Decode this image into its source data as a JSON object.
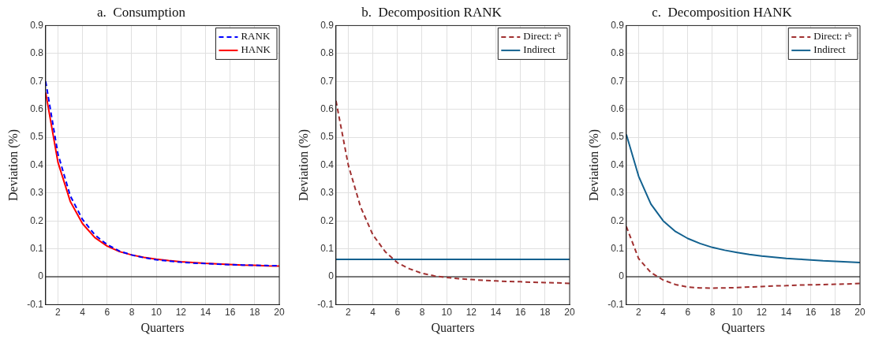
{
  "chart_data": [
    {
      "type": "line",
      "title": "a.  Consumption",
      "xlabel": "Quarters",
      "ylabel": "Deviation (%)",
      "x": [
        1,
        2,
        3,
        4,
        5,
        6,
        7,
        8,
        9,
        10,
        11,
        12,
        13,
        14,
        15,
        16,
        17,
        18,
        19,
        20
      ],
      "xlim": [
        1,
        20
      ],
      "xticks": [
        2,
        4,
        6,
        8,
        10,
        12,
        14,
        16,
        18,
        20
      ],
      "ylim": [
        -0.1,
        0.9
      ],
      "yticks": [
        -0.1,
        0,
        0.1,
        0.2,
        0.3,
        0.4,
        0.5,
        0.6,
        0.7,
        0.8,
        0.9
      ],
      "grid": true,
      "legend": "top right",
      "marker": "none",
      "ref_lines": [
        {
          "axis": "y",
          "value": 0,
          "color": "#000000",
          "line_style": "solid"
        }
      ],
      "series": [
        {
          "name": "RANK",
          "color": "#0000ff",
          "line_style": "dashed",
          "values": [
            0.7,
            0.44,
            0.29,
            0.205,
            0.15,
            0.115,
            0.092,
            0.078,
            0.068,
            0.061,
            0.056,
            0.052,
            0.049,
            0.047,
            0.045,
            0.043,
            0.042,
            0.041,
            0.04,
            0.039
          ]
        },
        {
          "name": "HANK",
          "color": "#ff0000",
          "line_style": "solid",
          "values": [
            0.66,
            0.41,
            0.27,
            0.19,
            0.14,
            0.11,
            0.09,
            0.078,
            0.069,
            0.063,
            0.058,
            0.054,
            0.051,
            0.048,
            0.046,
            0.044,
            0.042,
            0.041,
            0.039,
            0.038
          ]
        }
      ]
    },
    {
      "type": "line",
      "title": "b.  Decomposition RANK",
      "xlabel": "Quarters",
      "ylabel": "Deviation (%)",
      "x": [
        1,
        2,
        3,
        4,
        5,
        6,
        7,
        8,
        9,
        10,
        11,
        12,
        13,
        14,
        15,
        16,
        17,
        18,
        19,
        20
      ],
      "xlim": [
        1,
        20
      ],
      "xticks": [
        2,
        4,
        6,
        8,
        10,
        12,
        14,
        16,
        18,
        20
      ],
      "ylim": [
        -0.1,
        0.9
      ],
      "yticks": [
        -0.1,
        0,
        0.1,
        0.2,
        0.3,
        0.4,
        0.5,
        0.6,
        0.7,
        0.8,
        0.9
      ],
      "grid": true,
      "legend": "top right",
      "marker": "none",
      "ref_lines": [
        {
          "axis": "y",
          "value": 0,
          "color": "#000000",
          "line_style": "solid"
        }
      ],
      "series": [
        {
          "name": "Direct: rᵇ",
          "color": "#a03030",
          "line_style": "dashed",
          "values": [
            0.63,
            0.4,
            0.25,
            0.15,
            0.09,
            0.05,
            0.028,
            0.012,
            0.003,
            -0.003,
            -0.007,
            -0.01,
            -0.013,
            -0.015,
            -0.017,
            -0.018,
            -0.02,
            -0.021,
            -0.022,
            -0.024
          ]
        },
        {
          "name": "Indirect",
          "color": "#12618f",
          "line_style": "solid",
          "values": [
            0.062,
            0.062,
            0.062,
            0.062,
            0.062,
            0.062,
            0.062,
            0.062,
            0.062,
            0.062,
            0.062,
            0.062,
            0.062,
            0.062,
            0.062,
            0.062,
            0.062,
            0.062,
            0.062,
            0.062
          ]
        }
      ]
    },
    {
      "type": "line",
      "title": "c.  Decomposition HANK",
      "xlabel": "Quarters",
      "ylabel": "Deviation (%)",
      "x": [
        1,
        2,
        3,
        4,
        5,
        6,
        7,
        8,
        9,
        10,
        11,
        12,
        13,
        14,
        15,
        16,
        17,
        18,
        19,
        20
      ],
      "xlim": [
        1,
        20
      ],
      "xticks": [
        2,
        4,
        6,
        8,
        10,
        12,
        14,
        16,
        18,
        20
      ],
      "ylim": [
        -0.1,
        0.9
      ],
      "yticks": [
        -0.1,
        0,
        0.1,
        0.2,
        0.3,
        0.4,
        0.5,
        0.6,
        0.7,
        0.8,
        0.9
      ],
      "grid": true,
      "legend": "top right",
      "marker": "none",
      "ref_lines": [
        {
          "axis": "y",
          "value": 0,
          "color": "#000000",
          "line_style": "solid"
        }
      ],
      "series": [
        {
          "name": "Direct: rᵇ",
          "color": "#a03030",
          "line_style": "dashed",
          "values": [
            0.18,
            0.065,
            0.015,
            -0.012,
            -0.028,
            -0.037,
            -0.04,
            -0.041,
            -0.04,
            -0.039,
            -0.037,
            -0.035,
            -0.033,
            -0.032,
            -0.03,
            -0.029,
            -0.028,
            -0.027,
            -0.026,
            -0.024
          ]
        },
        {
          "name": "Indirect",
          "color": "#12618f",
          "line_style": "solid",
          "values": [
            0.51,
            0.36,
            0.26,
            0.2,
            0.162,
            0.137,
            0.119,
            0.105,
            0.095,
            0.087,
            0.08,
            0.074,
            0.07,
            0.066,
            0.063,
            0.06,
            0.057,
            0.055,
            0.053,
            0.051
          ]
        }
      ]
    }
  ]
}
